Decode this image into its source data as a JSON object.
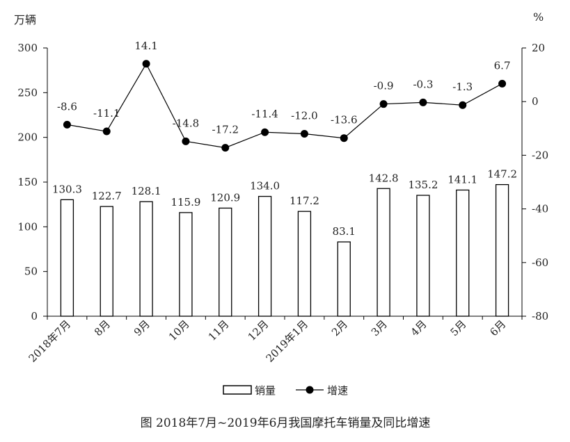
{
  "chart_data": {
    "type": "bar+line",
    "categories": [
      "2018年7月",
      "8月",
      "9月",
      "10月",
      "11月",
      "12月",
      "2019年1月",
      "2月",
      "3月",
      "4月",
      "5月",
      "6月"
    ],
    "series": [
      {
        "name": "销量",
        "type": "bar",
        "axis": "left",
        "values": [
          130.3,
          122.7,
          128.1,
          115.9,
          120.9,
          134.0,
          117.2,
          83.1,
          142.8,
          135.2,
          141.1,
          147.2
        ],
        "labels": [
          "130.3",
          "122.7",
          "128.1",
          "115.9",
          "120.9",
          "134.0",
          "117.2",
          "83.1",
          "142.8",
          "135.2",
          "141.1",
          "147.2"
        ]
      },
      {
        "name": "增速",
        "type": "line",
        "axis": "right",
        "values": [
          -8.6,
          -11.1,
          14.1,
          -14.8,
          -17.2,
          -11.4,
          -12.0,
          -13.6,
          -0.9,
          -0.3,
          -1.3,
          6.7
        ],
        "labels": [
          "-8.6",
          "-11.1",
          "14.1",
          "-14.8",
          "-17.2",
          "-11.4",
          "-12.0",
          "-13.6",
          "-0.9",
          "-0.3",
          "-1.3",
          "6.7"
        ]
      }
    ],
    "left_axis": {
      "unit": "万辆",
      "ylim": [
        0,
        300
      ],
      "ticks": [
        "0",
        "50",
        "100",
        "150",
        "200",
        "250",
        "300"
      ]
    },
    "right_axis": {
      "unit": "%",
      "ylim": [
        -80,
        20
      ],
      "ticks": [
        "-80",
        "-60",
        "-40",
        "-20",
        "0",
        "20"
      ]
    },
    "legend": {
      "placement": "bottom",
      "items": [
        "销量",
        "增速"
      ]
    },
    "grid": false,
    "caption": "图   2018年7月~2019年6月我国摩托车销量及同比增速"
  }
}
